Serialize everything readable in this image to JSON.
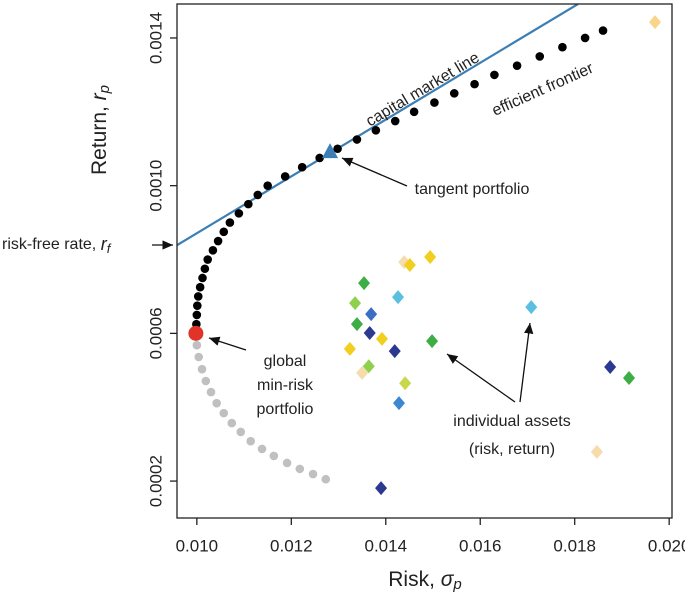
{
  "chart_data": {
    "type": "scatter",
    "x_label": {
      "text": "Risk, ",
      "symbol": "σ",
      "subscript": "p"
    },
    "y_label": {
      "text": "Return, ",
      "symbol": "r",
      "subscript": "p"
    },
    "xlim": [
      0.00958,
      0.02006
    ],
    "ylim": [
      0.0001,
      0.001492
    ],
    "xticks": [
      {
        "value": 0.01,
        "label": "0.010"
      },
      0.012,
      0.014,
      0.016,
      0.018,
      {
        "value": 0.02,
        "label": "0.020"
      }
    ],
    "yticks": [
      0.0002,
      0.0006,
      {
        "value": 0.001,
        "label": "0.0010"
      },
      0.0014
    ],
    "series": [
      {
        "type": "line",
        "color": "#3b7fb6",
        "x": [
          0.00958,
          0.01807
        ],
        "values": [
          0.000839,
          0.001492
        ]
      },
      {
        "type": "scatter",
        "marker": "circle",
        "color": "#000000",
        "x": [
          0.00999,
          0.01,
          0.01001,
          0.01003,
          0.01007,
          0.01012,
          0.01017,
          0.01023,
          0.01034,
          0.01045,
          0.01057,
          0.0107,
          0.01089,
          0.01109,
          0.01129,
          0.0115,
          0.01187,
          0.01223,
          0.0126,
          0.01298,
          0.01339,
          0.01379,
          0.0142,
          0.0146,
          0.01503,
          0.01545,
          0.01588,
          0.0163,
          0.01678,
          0.01726,
          0.01774,
          0.01822,
          0.0186
        ],
        "values": [
          0.000625,
          0.00065,
          0.000675,
          0.0007,
          0.000725,
          0.00075,
          0.000775,
          0.0008,
          0.000825,
          0.00085,
          0.000875,
          0.0009,
          0.000925,
          0.00095,
          0.000975,
          0.001,
          0.001025,
          0.00105,
          0.001075,
          0.0011,
          0.001125,
          0.00115,
          0.001175,
          0.0012,
          0.001225,
          0.00125,
          0.001275,
          0.0013,
          0.001325,
          0.00135,
          0.001375,
          0.0014,
          0.00142
        ]
      },
      {
        "type": "scatter",
        "marker": "circle",
        "color": "#c0c0c0",
        "x": [
          0.01,
          0.01004,
          0.01011,
          0.01019,
          0.0103,
          0.01042,
          0.01057,
          0.01074,
          0.01093,
          0.01114,
          0.01138,
          0.01163,
          0.01191,
          0.01218,
          0.01246,
          0.01273
        ],
        "values": [
          0.000568,
          0.000536,
          0.000503,
          0.000471,
          0.000441,
          0.000411,
          0.000384,
          0.000357,
          0.000333,
          0.000308,
          0.000287,
          0.000268,
          0.000249,
          0.000233,
          0.000219,
          0.000205
        ]
      },
      {
        "type": "scatter",
        "marker": "diamond",
        "x": [
          0.0197,
          0.01439,
          0.01494,
          0.01451,
          0.01354,
          0.01335,
          0.01426,
          0.01708,
          0.01339,
          0.01369,
          0.01366,
          0.01392,
          0.01419,
          0.01324,
          0.01498,
          0.01364,
          0.0135,
          0.01441,
          0.01428,
          0.01875,
          0.01915,
          0.01847,
          0.0139
        ],
        "values": [
          0.001443,
          0.000793,
          0.000807,
          0.000785,
          0.000736,
          0.000682,
          0.000698,
          0.000671,
          0.000625,
          0.000652,
          0.000601,
          0.000585,
          0.000552,
          0.000558,
          0.000579,
          0.000511,
          0.000493,
          0.000465,
          0.000411,
          0.000509,
          0.000479,
          0.000279,
          0.000181
        ],
        "colors": [
          "#f8d58a",
          "#f6dbac",
          "#f1cf1f",
          "#f1cf1f",
          "#3cae45",
          "#8fd14f",
          "#5bbfe0",
          "#5bbfe0",
          "#3cae45",
          "#3c6fc4",
          "#2b3990",
          "#f1cf1f",
          "#2b3990",
          "#f1cf1f",
          "#3cae45",
          "#8fd14f",
          "#f6dbac",
          "#c9d84a",
          "#3c87d0",
          "#2b3990",
          "#3cae45",
          "#f6dbac",
          "#2b3990"
        ]
      },
      {
        "type": "scatter",
        "marker": "triangle",
        "color": "#3b7fb6",
        "x": [
          0.01282
        ],
        "values": [
          0.001091
        ]
      },
      {
        "type": "scatter",
        "marker": "big-circle",
        "color": "#e0332a",
        "x": [
          0.00998
        ],
        "values": [
          0.0006
        ]
      }
    ],
    "annotations": {
      "cml": "capital market line",
      "frontier": "efficient frontier",
      "tangent": "tangent portfolio",
      "risk_free": {
        "text": "risk-free rate, ",
        "symbol": "r",
        "subscript": "f"
      },
      "min_risk": [
        "global",
        "min-risk",
        "portfolio"
      ],
      "assets": [
        "individual assets",
        "(risk, return)"
      ]
    }
  }
}
